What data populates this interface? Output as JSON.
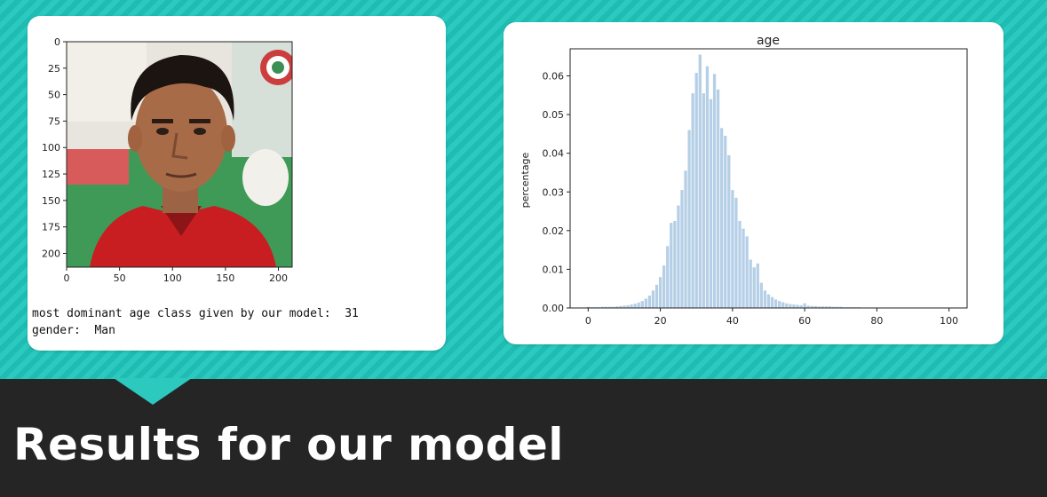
{
  "left_panel": {
    "image_axis": {
      "y_ticks": [
        "0",
        "25",
        "50",
        "75",
        "100",
        "125",
        "150",
        "175",
        "200"
      ],
      "x_ticks": [
        "0",
        "50",
        "100",
        "150",
        "200"
      ]
    },
    "output_line1": "most dominant age class given by our model:  31",
    "output_line2": "gender:  Man"
  },
  "chart_data": {
    "type": "bar",
    "title": "age",
    "xlabel": "",
    "ylabel": "percentage",
    "xlim": [
      -5,
      105
    ],
    "ylim": [
      0,
      0.067
    ],
    "x_ticks": [
      "0",
      "20",
      "40",
      "60",
      "80",
      "100"
    ],
    "y_ticks": [
      "0.00",
      "0.01",
      "0.02",
      "0.03",
      "0.04",
      "0.05",
      "0.06"
    ],
    "color": "#b5cfe6",
    "x": [
      0,
      1,
      2,
      3,
      4,
      5,
      6,
      7,
      8,
      9,
      10,
      11,
      12,
      13,
      14,
      15,
      16,
      17,
      18,
      19,
      20,
      21,
      22,
      23,
      24,
      25,
      26,
      27,
      28,
      29,
      30,
      31,
      32,
      33,
      34,
      35,
      36,
      37,
      38,
      39,
      40,
      41,
      42,
      43,
      44,
      45,
      46,
      47,
      48,
      49,
      50,
      51,
      52,
      53,
      54,
      55,
      56,
      57,
      58,
      59,
      60,
      61,
      62,
      63,
      64,
      65,
      66,
      67,
      68,
      69,
      70,
      71,
      72,
      73,
      74,
      75,
      76,
      77,
      78,
      79,
      80,
      81,
      82,
      83,
      84,
      85,
      86,
      87,
      88,
      89,
      90,
      91,
      92,
      93,
      94,
      95,
      96,
      97,
      98,
      99,
      100
    ],
    "values": [
      0.0003,
      0.0002,
      0.0002,
      0.0002,
      0.0003,
      0.0003,
      0.0003,
      0.0003,
      0.0004,
      0.0005,
      0.0006,
      0.0007,
      0.0009,
      0.0011,
      0.0014,
      0.0018,
      0.0024,
      0.0032,
      0.0045,
      0.006,
      0.008,
      0.011,
      0.016,
      0.022,
      0.0225,
      0.0265,
      0.0305,
      0.0355,
      0.046,
      0.0555,
      0.0608,
      0.0655,
      0.0555,
      0.0625,
      0.054,
      0.0605,
      0.0565,
      0.0465,
      0.0445,
      0.0395,
      0.0305,
      0.0285,
      0.0225,
      0.0205,
      0.0185,
      0.0125,
      0.0105,
      0.0115,
      0.0065,
      0.0045,
      0.0035,
      0.0028,
      0.0022,
      0.0018,
      0.0015,
      0.0012,
      0.001,
      0.0009,
      0.0008,
      0.0007,
      0.0012,
      0.0006,
      0.0005,
      0.0005,
      0.0004,
      0.0004,
      0.0004,
      0.0004,
      0.0003,
      0.0003,
      0.0003,
      0.0002,
      0.0002,
      0.0002,
      0.0002,
      0.0002,
      0.0001,
      0.0001,
      0.0001,
      0.0001,
      0.0001,
      0.0001,
      0.0001,
      0.0001,
      0.0001,
      0.0001,
      0.0001,
      0.0001,
      0.0001,
      0.0001,
      0.0001,
      0.0001,
      0.0001,
      0.0001,
      0.0001,
      0.0001,
      0.0001,
      0.0001,
      0.0001,
      0.0001,
      0.0001
    ]
  },
  "banner": {
    "title": "Results for our model"
  }
}
